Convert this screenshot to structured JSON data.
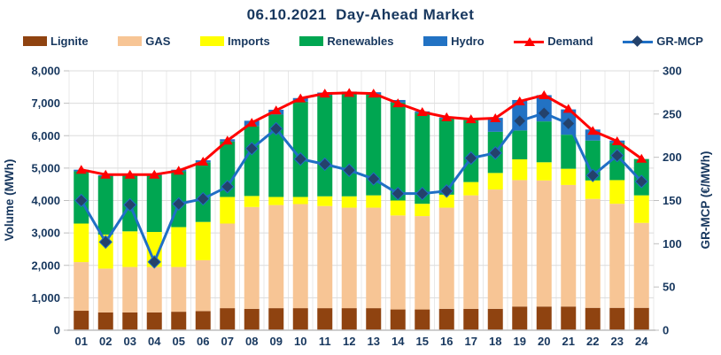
{
  "chart": {
    "title": "06.10.2021  Day-Ahead Market",
    "colors": {
      "text": "#17375E",
      "lignite": "#8F4310",
      "gas": "#F7C595",
      "imports": "#FFFF00",
      "renewables": "#00A651",
      "hydro": "#2272C3",
      "demand": "#FF0000",
      "gr_mcp_line": "#1F6FC5",
      "gr_mcp_marker": "#24426B",
      "grid": "#DCDCDC",
      "grid_vertical": "#E8E8E8",
      "axis_line": "#BFBFBF"
    },
    "legend": [
      {
        "label": "Lignite",
        "marker": "box",
        "color": "#8F4310"
      },
      {
        "label": "GAS",
        "marker": "box",
        "color": "#F7C595"
      },
      {
        "label": "Imports",
        "marker": "box",
        "color": "#FFFF00"
      },
      {
        "label": "Renewables",
        "marker": "box",
        "color": "#00A651"
      },
      {
        "label": "Hydro",
        "marker": "box",
        "color": "#2272C3"
      },
      {
        "label": "Demand",
        "marker": "line-triangle",
        "color": "#FF0000"
      },
      {
        "label": "GR-MCP",
        "marker": "line-diamond",
        "color": "#1F6FC5"
      }
    ],
    "left_axis": {
      "label": "Volume (MWh)",
      "min": 0,
      "max": 8000,
      "step": 1000,
      "tick_labels": [
        "0",
        "1,000",
        "2,000",
        "3,000",
        "4,000",
        "5,000",
        "6,000",
        "7,000",
        "8,000"
      ]
    },
    "right_axis": {
      "label": "GR-MCP (€/MWh)",
      "min": 0,
      "max": 300,
      "step": 50,
      "tick_labels": [
        "0",
        "50",
        "100",
        "150",
        "200",
        "250",
        "300"
      ]
    }
  },
  "chart_data": {
    "type": "combo-stacked-bar-line",
    "title": "06.10.2021  Day-Ahead Market",
    "xlabel": "",
    "ylabel_left": "Volume (MWh)",
    "ylabel_right": "GR-MCP (€/MWh)",
    "left_ylim": [
      0,
      8000
    ],
    "right_ylim": [
      0,
      300
    ],
    "grid": true,
    "legend_position": "top",
    "categories": [
      "01",
      "02",
      "03",
      "04",
      "05",
      "06",
      "07",
      "08",
      "09",
      "10",
      "11",
      "12",
      "13",
      "14",
      "15",
      "16",
      "17",
      "18",
      "19",
      "20",
      "21",
      "22",
      "23",
      "24"
    ],
    "series": [
      {
        "name": "Lignite",
        "type": "bar-stack",
        "axis": "left",
        "color": "#8F4310",
        "values": [
          600,
          550,
          550,
          550,
          570,
          590,
          680,
          660,
          680,
          680,
          680,
          680,
          680,
          640,
          640,
          660,
          660,
          660,
          730,
          730,
          730,
          690,
          690,
          690
        ]
      },
      {
        "name": "GAS",
        "type": "bar-stack",
        "axis": "left",
        "color": "#F7C595",
        "values": [
          1500,
          1350,
          1400,
          1400,
          1380,
          1570,
          2610,
          3140,
          3180,
          3210,
          3150,
          3100,
          3100,
          2900,
          2880,
          3120,
          3500,
          3680,
          3900,
          3890,
          3750,
          3360,
          3210,
          2620
        ]
      },
      {
        "name": "Imports",
        "type": "bar-stack",
        "axis": "left",
        "color": "#FFFF00",
        "values": [
          1190,
          1050,
          1100,
          1080,
          1230,
          1180,
          820,
          340,
          250,
          220,
          300,
          350,
          380,
          460,
          380,
          400,
          410,
          510,
          640,
          560,
          500,
          570,
          730,
          850
        ]
      },
      {
        "name": "Renewables",
        "type": "bar-stack",
        "axis": "left",
        "color": "#00A651",
        "values": [
          1610,
          1800,
          1730,
          1750,
          1720,
          1840,
          1710,
          2160,
          2540,
          2940,
          3120,
          3170,
          3120,
          3020,
          2800,
          2340,
          1910,
          1270,
          890,
          1260,
          1050,
          1230,
          1150,
          1120
        ]
      },
      {
        "name": "Hydro",
        "type": "bar-stack",
        "axis": "left",
        "color": "#2272C3",
        "values": [
          50,
          30,
          30,
          30,
          50,
          60,
          70,
          160,
          150,
          110,
          80,
          60,
          60,
          80,
          50,
          40,
          40,
          430,
          940,
          810,
          780,
          340,
          70,
          0
        ]
      },
      {
        "name": "Demand",
        "type": "line",
        "axis": "left",
        "color": "#FF0000",
        "marker": "triangle",
        "values": [
          4950,
          4800,
          4800,
          4800,
          4920,
          5200,
          5850,
          6400,
          6780,
          7150,
          7300,
          7320,
          7300,
          7000,
          6730,
          6570,
          6510,
          6540,
          7060,
          7250,
          6830,
          6150,
          5830,
          5290
        ]
      },
      {
        "name": "GR-MCP",
        "type": "line",
        "axis": "right",
        "color": "#1F6FC5",
        "marker": "diamond",
        "values": [
          150,
          102,
          145,
          79,
          146,
          152,
          166,
          210,
          233,
          198,
          192,
          185,
          175,
          158,
          158,
          161,
          199,
          205,
          242,
          251,
          239,
          179,
          202,
          172
        ]
      }
    ]
  }
}
